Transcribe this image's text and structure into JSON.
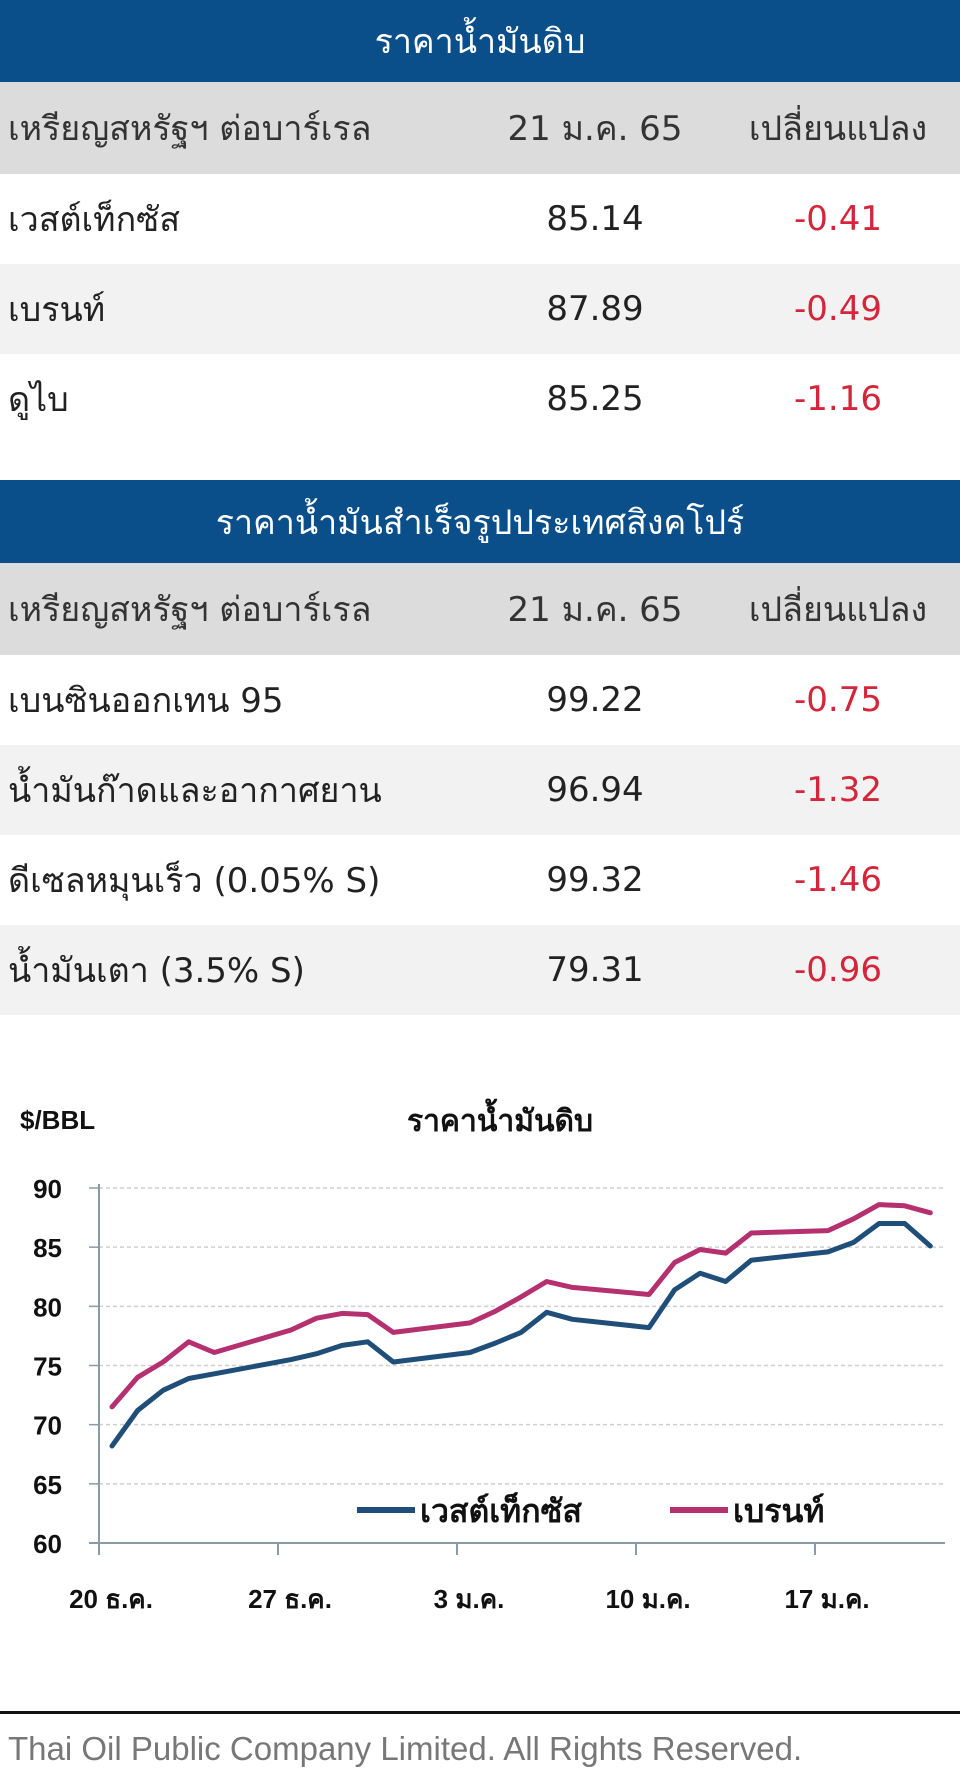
{
  "crude_table": {
    "title": "ราคาน้ำมันดิบ",
    "header": {
      "unit": "เหรียญสหรัฐฯ ต่อบาร์เรล",
      "date": "21 ม.ค. 65",
      "change": "เปลี่ยนแปลง"
    },
    "rows": [
      {
        "name": "เวสต์เท็กซัส",
        "price": "85.14",
        "change": "-0.41"
      },
      {
        "name": "เบรนท์",
        "price": "87.89",
        "change": "-0.49"
      },
      {
        "name": "ดูไบ",
        "price": "85.25",
        "change": "-1.16"
      }
    ]
  },
  "product_table": {
    "title": "ราคาน้ำมันสำเร็จรูปประเทศสิงคโปร์",
    "header": {
      "unit": "เหรียญสหรัฐฯ ต่อบาร์เรล",
      "date": "21 ม.ค. 65",
      "change": "เปลี่ยนแปลง"
    },
    "rows": [
      {
        "name": "เบนซินออกเทน 95",
        "price": "99.22",
        "change": "-0.75"
      },
      {
        "name": "น้ำมันก๊าดและอากาศยาน",
        "price": "96.94",
        "change": "-1.32"
      },
      {
        "name": "ดีเซลหมุนเร็ว (0.05% S)",
        "price": "99.32",
        "change": "-1.46"
      },
      {
        "name": "น้ำมันเตา (3.5% S)",
        "price": "79.31",
        "change": "-0.96"
      }
    ]
  },
  "colors": {
    "header_bg": "#0b4f8a",
    "negative": "#d3263a",
    "wti": "#1f4e79",
    "brent": "#b5306f"
  },
  "chart_data": {
    "type": "line",
    "title": "ราคาน้ำมันดิบ",
    "ylabel": "$/BBL",
    "xlabel": "",
    "ylim": [
      60,
      90
    ],
    "yticks": [
      60,
      65,
      70,
      75,
      80,
      85,
      90
    ],
    "xtick_labels": [
      "20 ธ.ค.",
      "27 ธ.ค.",
      "3 ม.ค.",
      "10 ม.ค.",
      "17 ม.ค."
    ],
    "grid": true,
    "legend_position": "bottom-inside",
    "x": [
      "20 ธ.ค.",
      "21 ธ.ค.",
      "22 ธ.ค.",
      "23 ธ.ค.",
      "24 ธ.ค.",
      "27 ธ.ค.",
      "28 ธ.ค.",
      "29 ธ.ค.",
      "30 ธ.ค.",
      "31 ธ.ค.",
      "3 ม.ค.",
      "4 ม.ค.",
      "5 ม.ค.",
      "6 ม.ค.",
      "7 ม.ค.",
      "10 ม.ค.",
      "11 ม.ค.",
      "12 ม.ค.",
      "13 ม.ค.",
      "14 ม.ค.",
      "17 ม.ค.",
      "18 ม.ค.",
      "19 ม.ค.",
      "20 ม.ค.",
      "21 ม.ค."
    ],
    "series": [
      {
        "name": "เวสต์เท็กซัส",
        "color": "#1f4e79",
        "values": [
          68.2,
          71.2,
          72.9,
          73.9,
          74.3,
          75.5,
          76.0,
          76.7,
          77.0,
          75.3,
          76.1,
          76.9,
          77.8,
          79.5,
          78.9,
          78.2,
          81.4,
          82.8,
          82.1,
          83.9,
          84.6,
          85.4,
          87.0,
          87.0,
          85.1
        ]
      },
      {
        "name": "เบรนท์",
        "color": "#b5306f",
        "values": [
          71.5,
          74.0,
          75.3,
          77.0,
          76.1,
          78.0,
          79.0,
          79.4,
          79.3,
          77.8,
          78.6,
          79.6,
          80.8,
          82.1,
          81.6,
          81.0,
          83.7,
          84.8,
          84.5,
          86.2,
          86.4,
          87.4,
          88.6,
          88.5,
          87.9
        ]
      }
    ]
  },
  "footer": {
    "text": "Thai Oil Public Company Limited. All Rights Reserved."
  }
}
